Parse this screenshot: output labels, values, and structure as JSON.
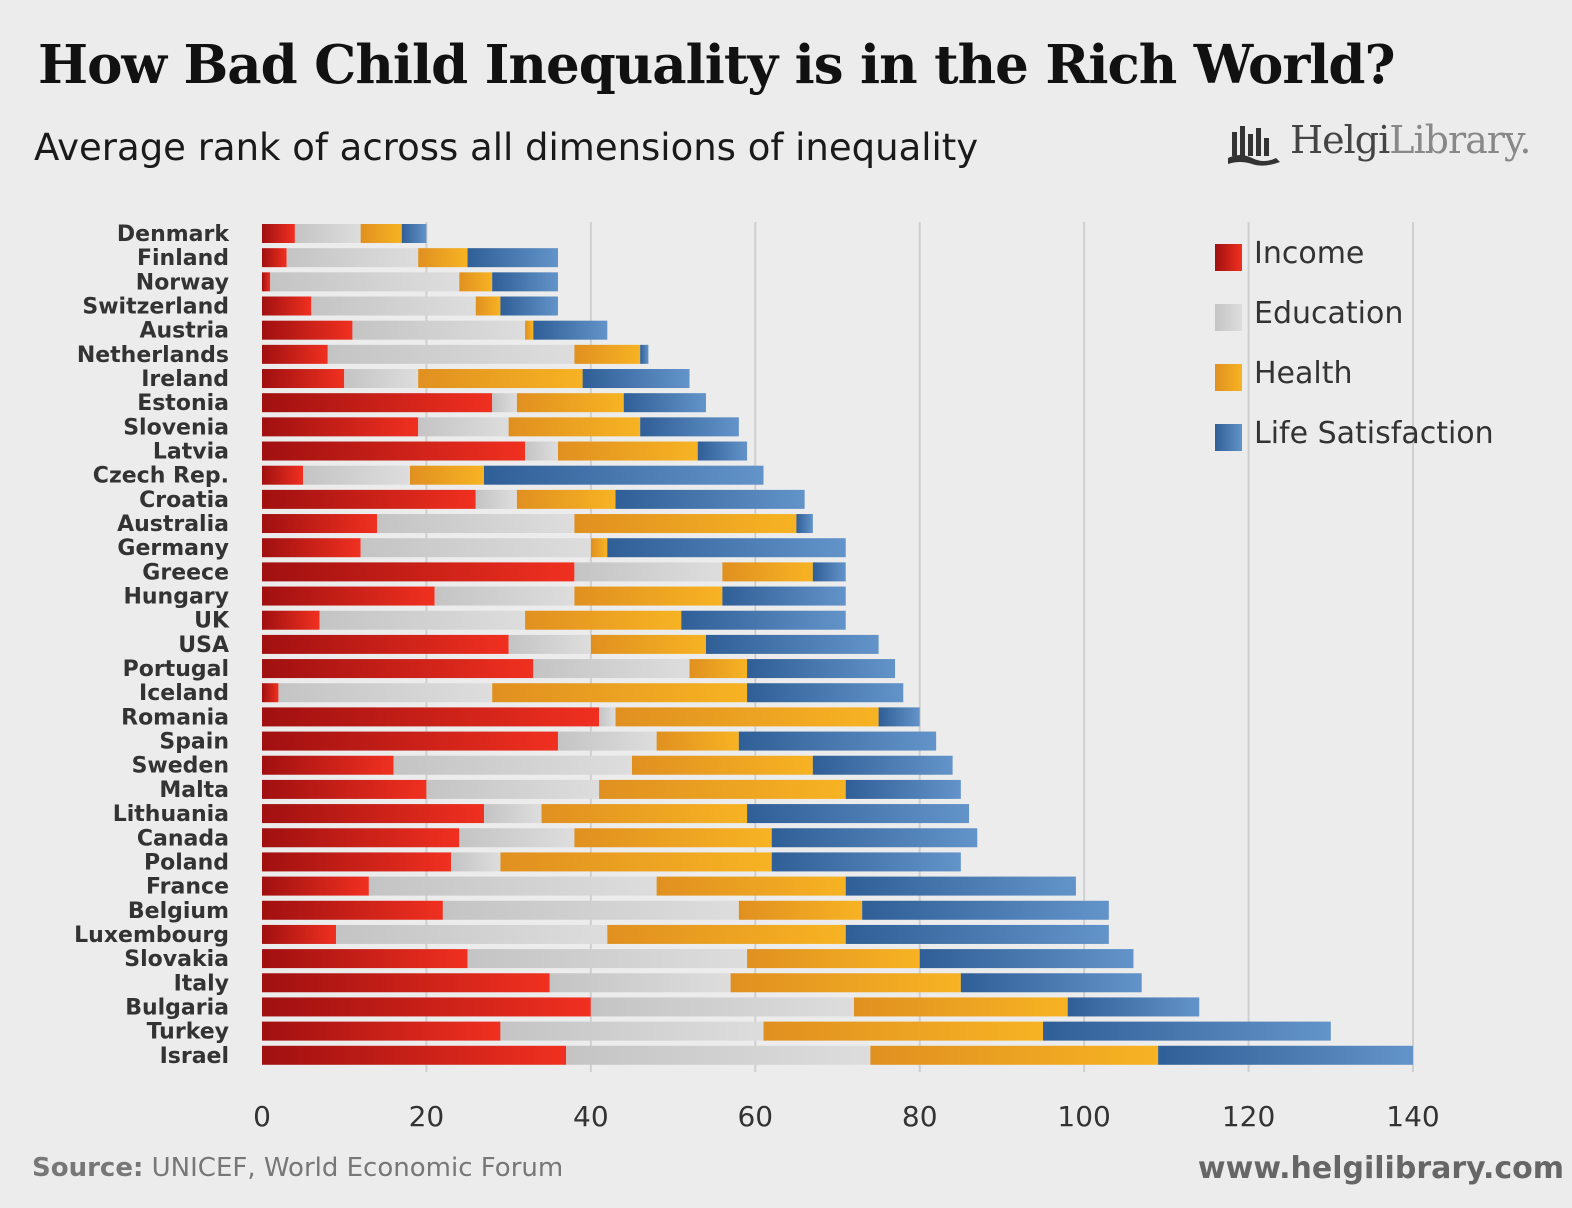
{
  "header": {
    "title": "How Bad Child Inequality is in the Rich World?",
    "subtitle": "Average rank of across all dimensions of inequality"
  },
  "logo": {
    "brand_bold": "Helgi",
    "brand_light": "Library."
  },
  "footer": {
    "source_label": "Source:",
    "source_text": " UNICEF, World Economic Forum",
    "website": "www.helgilibrary.com"
  },
  "colors": {
    "Income": [
      "#a01010",
      "#f03020"
    ],
    "Education": [
      "#c4c4c4",
      "#dddddd"
    ],
    "Health": [
      "#e09020",
      "#f7b323"
    ],
    "Life Satisfaction": [
      "#2f5f96",
      "#6293c9"
    ]
  },
  "chart_data": {
    "type": "bar",
    "orientation": "horizontal",
    "stacked": true,
    "title": "How Bad Child Inequality is in the Rich World?",
    "subtitle": "Average rank of across all dimensions of inequality",
    "xlim": [
      0,
      140
    ],
    "xticks": [
      0,
      20,
      40,
      60,
      80,
      100,
      120,
      140
    ],
    "grid": "vertical",
    "legend_position": "top-right",
    "categories": [
      "Denmark",
      "Finland",
      "Norway",
      "Switzerland",
      "Austria",
      "Netherlands",
      "Ireland",
      "Estonia",
      "Slovenia",
      "Latvia",
      "Czech Rep.",
      "Croatia",
      "Australia",
      "Germany",
      "Greece",
      "Hungary",
      "UK",
      "USA",
      "Portugal",
      "Iceland",
      "Romania",
      "Spain",
      "Sweden",
      "Malta",
      "Lithuania",
      "Canada",
      "Poland",
      "France",
      "Belgium",
      "Luxembourg",
      "Slovakia",
      "Italy",
      "Bulgaria",
      "Turkey",
      "Israel"
    ],
    "series": [
      {
        "name": "Income",
        "values": [
          4,
          3,
          1,
          6,
          11,
          8,
          10,
          28,
          19,
          32,
          5,
          26,
          14,
          12,
          38,
          21,
          7,
          30,
          33,
          2,
          41,
          36,
          16,
          20,
          27,
          24,
          23,
          13,
          22,
          9,
          25,
          35,
          40,
          29,
          37
        ]
      },
      {
        "name": "Education",
        "values": [
          8,
          16,
          23,
          20,
          21,
          30,
          9,
          3,
          11,
          4,
          13,
          5,
          24,
          28,
          18,
          17,
          25,
          10,
          19,
          26,
          2,
          12,
          29,
          21,
          7,
          14,
          6,
          35,
          36,
          33,
          34,
          22,
          32,
          32,
          37
        ]
      },
      {
        "name": "Health",
        "values": [
          5,
          6,
          4,
          3,
          1,
          8,
          20,
          13,
          16,
          17,
          9,
          12,
          27,
          2,
          11,
          18,
          19,
          14,
          7,
          31,
          32,
          10,
          22,
          30,
          25,
          24,
          33,
          23,
          15,
          29,
          21,
          28,
          26,
          34,
          35
        ]
      },
      {
        "name": "Life Satisfaction",
        "values": [
          3,
          11,
          8,
          7,
          9,
          1,
          13,
          10,
          12,
          6,
          34,
          23,
          2,
          29,
          4,
          15,
          20,
          21,
          18,
          19,
          5,
          24,
          17,
          14,
          27,
          25,
          23,
          28,
          30,
          32,
          26,
          22,
          16,
          35,
          31
        ]
      }
    ]
  }
}
